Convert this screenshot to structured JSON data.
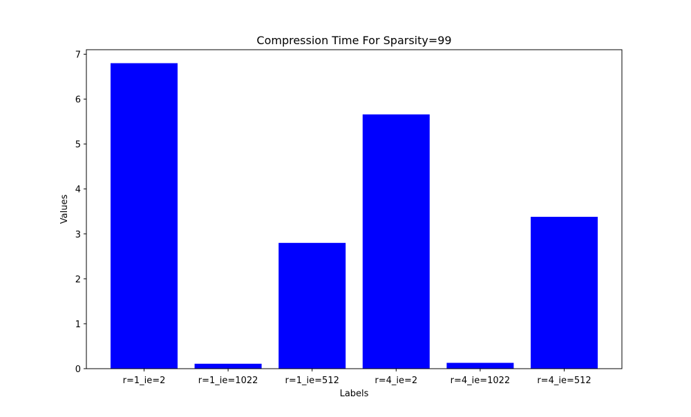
{
  "chart_data": {
    "type": "bar",
    "title": "Compression Time For Sparsity=99",
    "xlabel": "Labels",
    "ylabel": "Values",
    "categories": [
      "r=1_ie=2",
      "r=1_ie=1022",
      "r=1_ie=512",
      "r=4_ie=2",
      "r=4_ie=1022",
      "r=4_ie=512"
    ],
    "values": [
      6.8,
      0.11,
      2.8,
      5.66,
      0.13,
      3.38
    ],
    "ylim": [
      0,
      7.1
    ],
    "yticks": [
      "0",
      "1",
      "2",
      "3",
      "4",
      "5",
      "6",
      "7"
    ],
    "bar_color": "#0000ff",
    "grid": false,
    "legend": "none"
  }
}
